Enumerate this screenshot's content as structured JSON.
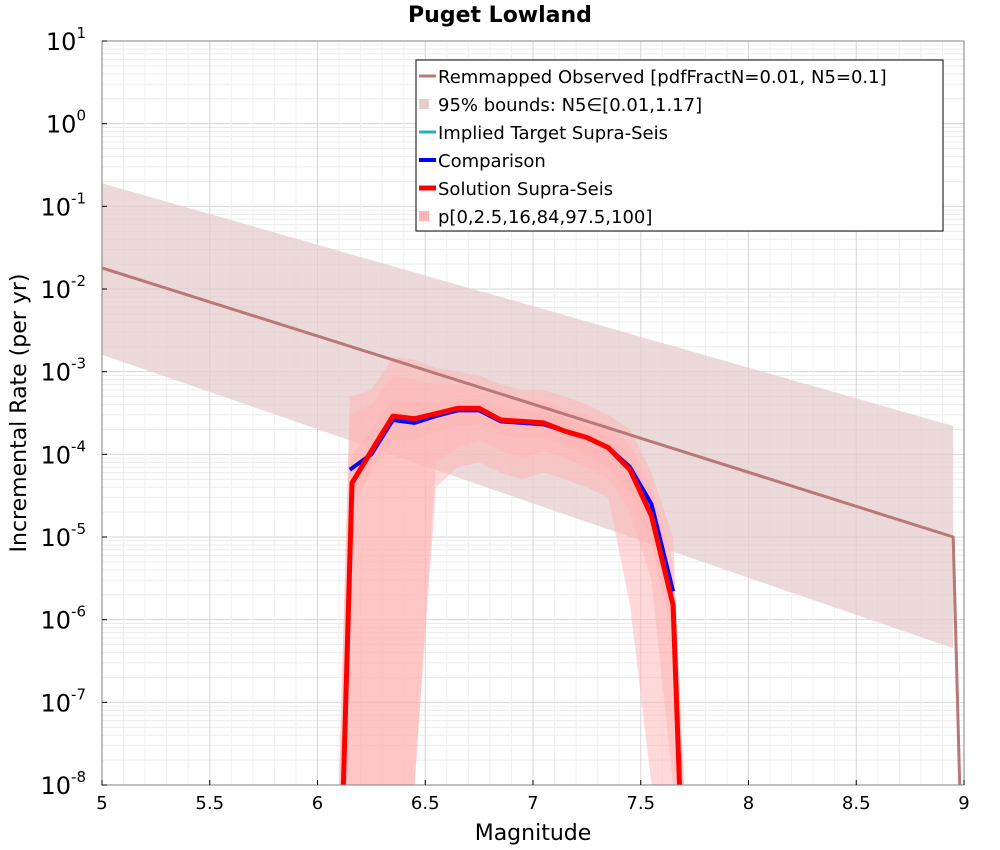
{
  "chart_data": {
    "type": "line",
    "title": "Puget Lowland",
    "xlabel": "Magnitude",
    "ylabel": "Incremental Rate (per yr)",
    "xlim": [
      5,
      9
    ],
    "ylim_log10": [
      -8,
      1
    ],
    "x_ticks": [
      "5",
      "5.5",
      "6",
      "6.5",
      "7",
      "7.5",
      "8",
      "8.5",
      "9"
    ],
    "y_tick_base": "10",
    "y_tick_exponents": [
      "1",
      "0",
      "-1",
      "-2",
      "-3",
      "-4",
      "-5",
      "-6",
      "-7",
      "-8"
    ],
    "legend_position": "top-right",
    "series": [
      {
        "name": "Remmapped Observed [pdfFractN=0.01, N5=0.1]",
        "color": "#b87878",
        "style": "line",
        "x": [
          5.0,
          8.95,
          8.98
        ],
        "y": [
          0.018,
          1e-05,
          1e-08
        ]
      },
      {
        "name": "95% bounds: N5∈[0.01,1.17]",
        "color": "#e6cccc",
        "style": "band",
        "x": [
          5.0,
          8.95
        ],
        "lower": [
          0.0016,
          4.5e-07
        ],
        "upper": [
          0.19,
          0.00022
        ]
      },
      {
        "name": "Implied Target Supra-Seis",
        "color": "#20b0c0",
        "style": "line",
        "x": [],
        "y": []
      },
      {
        "name": "Comparison",
        "color": "#0000ff",
        "style": "line",
        "x": [
          6.15,
          6.25,
          6.35,
          6.45,
          6.55,
          6.65,
          6.75,
          6.85,
          6.95,
          7.05,
          7.15,
          7.25,
          7.35,
          7.45,
          7.55,
          7.65
        ],
        "y": [
          6.5e-05,
          0.0001,
          0.00026,
          0.00024,
          0.00029,
          0.00034,
          0.00034,
          0.00025,
          0.00024,
          0.00023,
          0.00019,
          0.00016,
          0.00012,
          7e-05,
          2.5e-05,
          2.2e-06
        ]
      },
      {
        "name": "Solution Supra-Seis",
        "color": "#ff0000",
        "style": "line",
        "x": [
          6.12,
          6.16,
          6.25,
          6.35,
          6.45,
          6.55,
          6.65,
          6.75,
          6.85,
          6.95,
          7.05,
          7.15,
          7.25,
          7.35,
          7.45,
          7.55,
          7.65,
          7.68
        ],
        "y": [
          1e-08,
          4.5e-05,
          0.00011,
          0.00029,
          0.00027,
          0.00031,
          0.00036,
          0.00036,
          0.00026,
          0.00025,
          0.00024,
          0.00019,
          0.00016,
          0.00012,
          6.5e-05,
          1.8e-05,
          1.5e-06,
          1e-08
        ]
      },
      {
        "name": "p[0,2.5,16,84,97.5,100]",
        "color": "#ffb4b4",
        "style": "band",
        "bands": [
          {
            "x": [
              6.1,
              6.15,
              6.25,
              6.35,
              6.45,
              6.55,
              6.65,
              6.75,
              6.85,
              6.95,
              7.05,
              7.15,
              7.25,
              7.35,
              7.45,
              7.55,
              7.65,
              7.7
            ],
            "lower": [
              1e-08,
              1e-08,
              1e-08,
              1e-08,
              1e-08,
              4e-05,
              7e-05,
              8e-05,
              6e-05,
              5e-05,
              6e-05,
              5e-05,
              4e-05,
              3e-05,
              1.5e-06,
              1e-08,
              1e-08,
              1e-08
            ],
            "upper": [
              1e-08,
              0.0005,
              0.0006,
              0.0015,
              0.0014,
              0.0011,
              0.001,
              0.0009,
              0.0007,
              0.0006,
              0.0006,
              0.0005,
              0.0004,
              0.0003,
              0.0002,
              6e-05,
              1e-05,
              1e-08
            ]
          },
          {
            "x": [
              6.1,
              6.15,
              6.25,
              6.35,
              6.45,
              6.55,
              6.65,
              6.75,
              6.85,
              6.95,
              7.05,
              7.15,
              7.25,
              7.35,
              7.45,
              7.55,
              7.65,
              7.7
            ],
            "lower": [
              1e-08,
              1e-08,
              1e-08,
              1e-08,
              1e-08,
              8e-05,
              0.00012,
              0.00015,
              0.00011,
              9e-05,
              0.00011,
              9e-05,
              7e-05,
              5e-05,
              2e-05,
              3e-06,
              1e-08,
              1e-08
            ],
            "upper": [
              1e-08,
              0.0003,
              0.0004,
              0.0009,
              0.0008,
              0.0007,
              0.0007,
              0.0006,
              0.0005,
              0.00045,
              0.00045,
              0.00035,
              0.0003,
              0.00022,
              0.00013,
              4e-05,
              5e-06,
              1e-08
            ]
          },
          {
            "x": [
              6.13,
              6.15,
              6.25,
              6.35,
              6.45,
              6.55,
              6.65,
              6.75,
              6.85,
              6.95,
              7.05,
              7.15,
              7.25,
              7.35,
              7.45,
              7.55,
              7.65,
              7.68
            ],
            "lower": [
              1e-08,
              2e-05,
              6e-05,
              0.00015,
              0.00015,
              0.00019,
              0.00022,
              0.00023,
              0.00017,
              0.00016,
              0.00016,
              0.00013,
              0.0001,
              7e-05,
              3.5e-05,
              8e-06,
              6e-07,
              1e-08
            ],
            "upper": [
              1e-08,
              9e-05,
              0.0002,
              0.00045,
              0.00042,
              0.00042,
              0.00046,
              0.00046,
              0.00036,
              0.00034,
              0.00032,
              0.00027,
              0.00022,
              0.00017,
              9.5e-05,
              3e-05,
              3e-06,
              1e-08
            ]
          }
        ]
      }
    ]
  }
}
